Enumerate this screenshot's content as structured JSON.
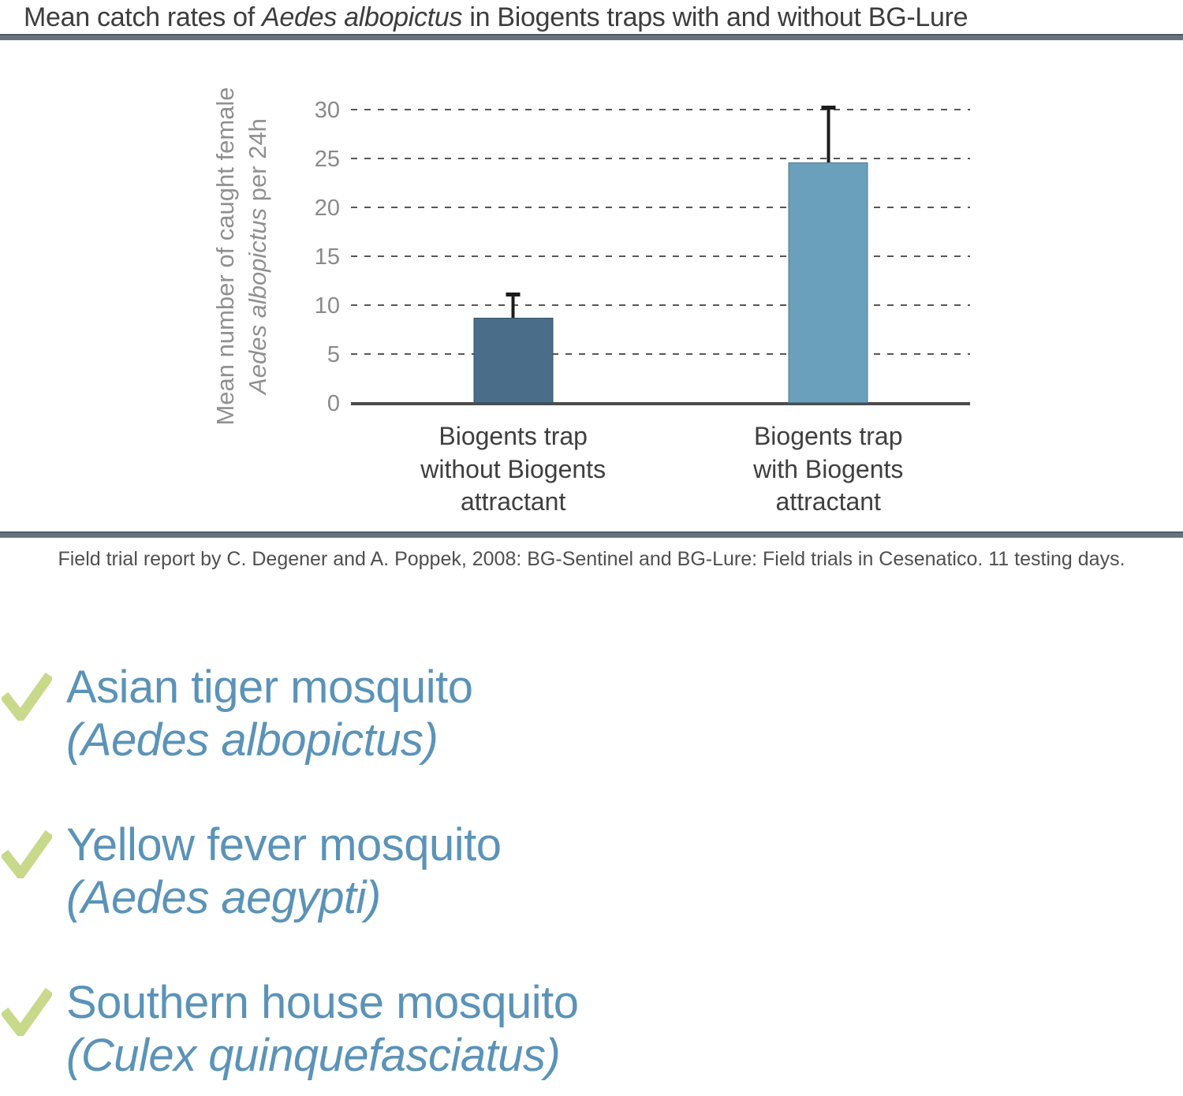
{
  "header": {
    "title_prefix": "Mean catch rates of ",
    "title_species": "Aedes albopictus",
    "title_suffix": " in Biogents traps with and without BG-Lure"
  },
  "chart_data": {
    "type": "bar",
    "title": "Mean catch rates of Aedes albopictus in Biogents traps with and without BG-Lure",
    "ylabel_line1": "Mean number of caught female",
    "ylabel_species": "Aedes albopictus",
    "ylabel_suffix": " per 24h",
    "ylim": [
      0,
      30
    ],
    "yticks": [
      0,
      5,
      10,
      15,
      20,
      25,
      30
    ],
    "grid": "horizontal dashed",
    "legend": "none",
    "categories": [
      "Biogents trap\nwithout Biogents\nattractant",
      "Biogents trap\nwith Biogents\nattractant"
    ],
    "values": [
      8.7,
      24.6
    ],
    "error_upper": [
      2.5,
      5.7
    ],
    "bar_colors": [
      "#4a6e89",
      "#6aa0bc"
    ]
  },
  "caption": "Field trial report by C. Degener and A. Poppek, 2008: BG-Sentinel and BG-Lure: Field trials in Cesenatico. 11 testing days.",
  "species_list": [
    {
      "common_name": "Asian tiger mosquito",
      "latin_name": "(Aedes albopictus)"
    },
    {
      "common_name": "Yellow fever mosquito",
      "latin_name": "(Aedes aegypti)"
    },
    {
      "common_name": "Southern house mosquito",
      "latin_name": "(Culex quinquefasciatus)"
    }
  ],
  "colors": {
    "divider_slate": "#68727f",
    "checkmark_green": "#c9d98c",
    "species_blue": "#5b93b8",
    "bar_without_lure": "#4a6e89",
    "bar_with_lure": "#6aa0bc",
    "gridline_gray": "#565656",
    "tick_gray": "#8a8a8a"
  }
}
